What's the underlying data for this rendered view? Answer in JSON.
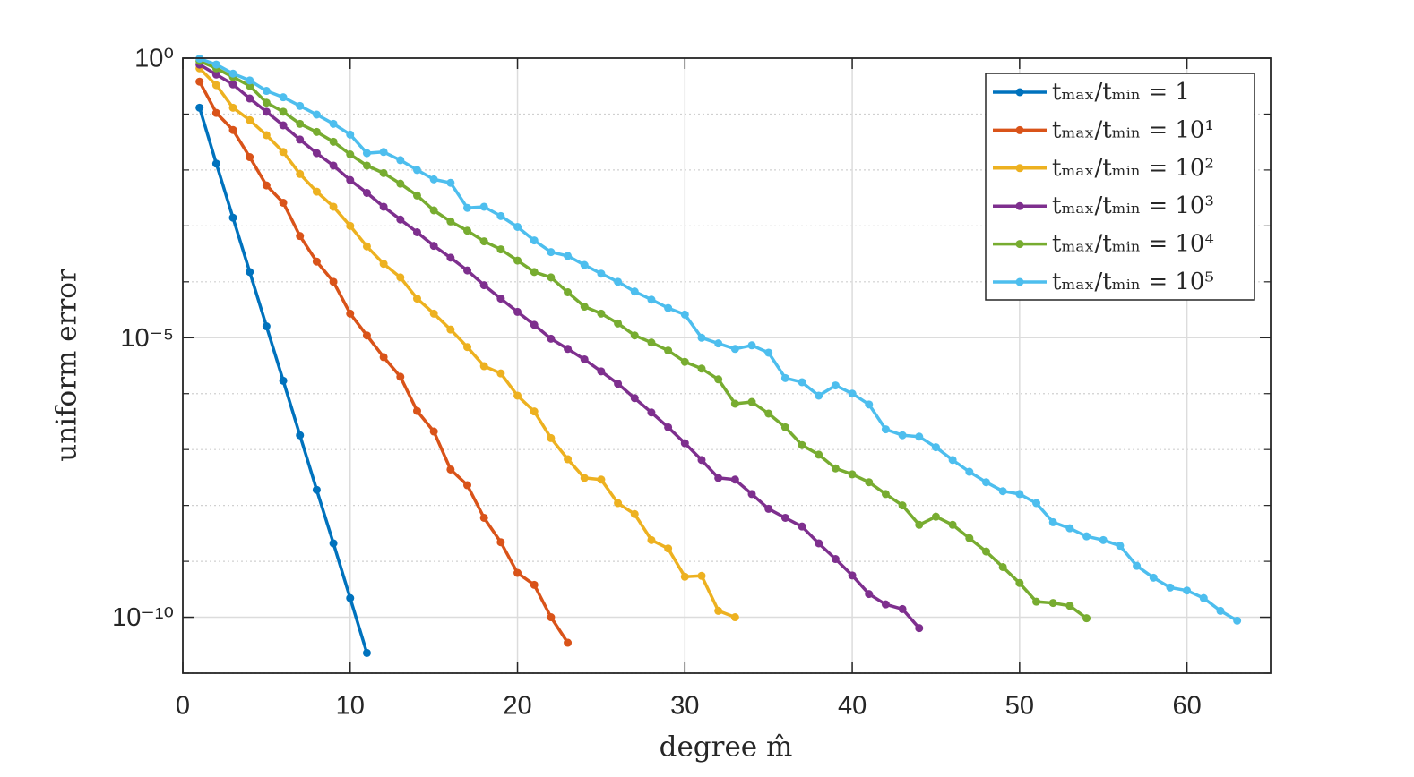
{
  "chart_data": {
    "type": "line",
    "xlabel": "degree m̂",
    "ylabel": "uniform error",
    "xlim": [
      0,
      65
    ],
    "ylim": [
      1e-11,
      1
    ],
    "ylog": true,
    "xticks": [
      0,
      10,
      20,
      30,
      40,
      50,
      60
    ],
    "yticks": [
      {
        "value": 1e-10,
        "label": "10⁻¹⁰"
      },
      {
        "value": 1e-05,
        "label": "10⁻⁵"
      },
      {
        "value": 1,
        "label": "10⁰"
      }
    ],
    "yminorticks": [
      1e-11,
      1e-09,
      1e-08,
      1e-07,
      1e-06,
      0.0001,
      0.001,
      0.01,
      0.1
    ],
    "grid": true,
    "legend": "northeast",
    "series": [
      {
        "name": "tₘₐₓ/tₘᵢₙ = 1",
        "color": "#0072BD",
        "x": [
          1,
          2,
          3,
          4,
          5,
          6,
          7,
          8,
          9,
          10,
          11
        ],
        "values": [
          0.13,
          0.013,
          0.0014,
          0.00015,
          1.6e-05,
          1.7e-06,
          1.8e-07,
          1.9e-08,
          2.1e-09,
          2.2e-10,
          2.3e-11
        ]
      },
      {
        "name": "tₘₐₓ/tₘᵢₙ = 10¹",
        "color": "#D95319",
        "x": [
          1,
          2,
          3,
          4,
          5,
          6,
          7,
          8,
          9,
          10,
          11,
          12,
          13,
          14,
          15,
          16,
          17,
          18,
          19,
          20,
          21,
          22,
          23
        ],
        "values": [
          0.38,
          0.105,
          0.052,
          0.017,
          0.0053,
          0.0026,
          0.00066,
          0.00023,
          0.0001,
          2.7e-05,
          1.1e-05,
          4.5e-06,
          2e-06,
          4.9e-07,
          2.1e-07,
          4.4e-08,
          2.3e-08,
          6e-09,
          2.2e-09,
          6.2e-10,
          3.8e-10,
          1e-10,
          3.5e-11
        ]
      },
      {
        "name": "tₘₐₓ/tₘᵢₙ = 10²",
        "color": "#EDB120",
        "x": [
          1,
          2,
          3,
          4,
          5,
          6,
          7,
          8,
          9,
          10,
          11,
          12,
          13,
          14,
          15,
          16,
          17,
          18,
          19,
          20,
          21,
          22,
          23,
          24,
          25,
          26,
          27,
          28,
          29,
          30,
          31,
          32,
          33
        ],
        "values": [
          0.66,
          0.33,
          0.13,
          0.078,
          0.042,
          0.021,
          0.0085,
          0.0041,
          0.0022,
          0.001,
          0.00043,
          0.00021,
          0.00012,
          5e-05,
          2.7e-05,
          1.4e-05,
          6.8e-06,
          3.1e-06,
          2.3e-06,
          9.2e-07,
          4.8e-07,
          1.6e-07,
          6.7e-08,
          3.1e-08,
          2.9e-08,
          1.1e-08,
          7e-09,
          2.4e-09,
          1.7e-09,
          5.3e-10,
          5.5e-10,
          1.3e-10,
          1e-10
        ]
      },
      {
        "name": "tₘₐₓ/tₘᵢₙ = 10³",
        "color": "#7E2F8E",
        "x": [
          1,
          2,
          3,
          4,
          5,
          6,
          7,
          8,
          9,
          10,
          11,
          12,
          13,
          14,
          15,
          16,
          17,
          18,
          19,
          20,
          21,
          22,
          23,
          24,
          25,
          26,
          27,
          28,
          29,
          30,
          31,
          32,
          33,
          34,
          35,
          36,
          37,
          38,
          39,
          40,
          41,
          42,
          43,
          44
        ],
        "values": [
          0.77,
          0.51,
          0.34,
          0.19,
          0.11,
          0.063,
          0.035,
          0.02,
          0.012,
          0.0066,
          0.0039,
          0.0022,
          0.0013,
          0.00077,
          0.00044,
          0.00027,
          0.00016,
          8.7e-05,
          5e-05,
          2.9e-05,
          1.7e-05,
          9.6e-06,
          6.3e-06,
          4.1e-06,
          2.5e-06,
          1.5e-06,
          8.3e-07,
          4.6e-07,
          2.5e-07,
          1.3e-07,
          6.5e-08,
          3.1e-08,
          2.9e-08,
          1.6e-08,
          8.7e-09,
          6e-09,
          4.2e-09,
          2.1e-09,
          1.1e-09,
          5.6e-10,
          2.6e-10,
          1.7e-10,
          1.4e-10,
          6.4e-11
        ]
      },
      {
        "name": "tₘₐₓ/tₘᵢₙ = 10⁴",
        "color": "#77AC30",
        "x": [
          1,
          2,
          3,
          4,
          5,
          6,
          7,
          8,
          9,
          10,
          11,
          12,
          13,
          14,
          15,
          16,
          17,
          18,
          19,
          20,
          21,
          22,
          23,
          24,
          25,
          26,
          27,
          28,
          29,
          30,
          31,
          32,
          33,
          34,
          35,
          36,
          37,
          38,
          39,
          40,
          41,
          42,
          43,
          44,
          45,
          46,
          47,
          48,
          49,
          50,
          51,
          52,
          53,
          54
        ],
        "values": [
          0.89,
          0.66,
          0.46,
          0.32,
          0.16,
          0.11,
          0.067,
          0.048,
          0.032,
          0.019,
          0.012,
          0.0088,
          0.0057,
          0.0035,
          0.0019,
          0.0012,
          0.00082,
          0.00053,
          0.00038,
          0.00024,
          0.00015,
          0.00012,
          6.5e-05,
          3.6e-05,
          2.7e-05,
          1.8e-05,
          1.1e-05,
          8.2e-06,
          5.9e-06,
          3.7e-06,
          2.8e-06,
          1.8e-06,
          6.6e-07,
          7.1e-07,
          4.4e-07,
          2.5e-07,
          1.2e-07,
          8.1e-08,
          4.6e-08,
          3.6e-08,
          2.6e-08,
          1.6e-08,
          1e-08,
          4.5e-09,
          6.3e-09,
          4.5e-09,
          2.6e-09,
          1.5e-09,
          7.9e-10,
          4.1e-10,
          1.9e-10,
          1.8e-10,
          1.6e-10,
          9.6e-11
        ]
      },
      {
        "name": "tₘₐₓ/tₘᵢₙ = 10⁵",
        "color": "#4DBEEE",
        "x": [
          1,
          2,
          3,
          4,
          5,
          6,
          7,
          8,
          9,
          10,
          11,
          12,
          13,
          14,
          15,
          16,
          17,
          18,
          19,
          20,
          21,
          22,
          23,
          24,
          25,
          26,
          27,
          28,
          29,
          30,
          31,
          32,
          33,
          34,
          35,
          36,
          37,
          38,
          39,
          40,
          41,
          42,
          43,
          44,
          45,
          46,
          47,
          48,
          49,
          50,
          51,
          52,
          53,
          54,
          55,
          56,
          57,
          58,
          59,
          60,
          61,
          62,
          63
        ],
        "values": [
          0.98,
          0.77,
          0.53,
          0.4,
          0.26,
          0.2,
          0.14,
          0.098,
          0.067,
          0.043,
          0.02,
          0.021,
          0.015,
          0.01,
          0.0068,
          0.0059,
          0.0021,
          0.0022,
          0.0015,
          0.00096,
          0.00055,
          0.00034,
          0.00029,
          0.0002,
          0.00014,
          0.0001,
          6.7e-05,
          4.8e-05,
          3.4e-05,
          2.6e-05,
          1e-05,
          7.9e-06,
          6.3e-06,
          7.3e-06,
          5.4e-06,
          1.9e-06,
          1.6e-06,
          9.2e-07,
          1.4e-06,
          1e-06,
          6.4e-07,
          2.3e-07,
          1.8e-07,
          1.7e-07,
          1.1e-07,
          6.5e-08,
          4e-08,
          2.6e-08,
          1.8e-08,
          1.6e-08,
          1.1e-08,
          5e-09,
          3.9e-09,
          2.8e-09,
          2.4e-09,
          1.9e-09,
          8.3e-10,
          5.1e-10,
          3.4e-10,
          3e-10,
          2.2e-10,
          1.3e-10,
          8.7e-11
        ]
      }
    ]
  }
}
